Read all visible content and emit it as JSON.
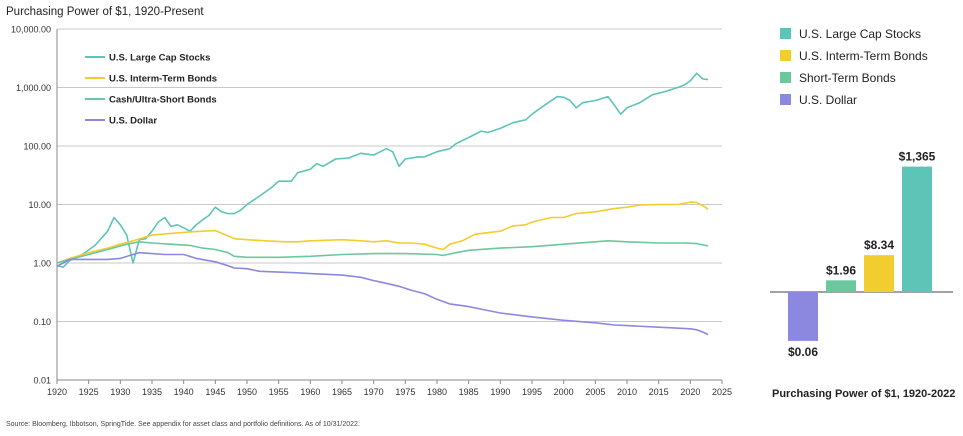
{
  "chart_data": [
    {
      "type": "line",
      "title": "Purchasing Power of $1, 1920-Present",
      "y_scale": "log",
      "ylim": [
        0.01,
        10000
      ],
      "xlim": [
        1920,
        2025
      ],
      "grid": true,
      "legend_position": "top-left",
      "x_ticks": [
        "1920",
        "1925",
        "1930",
        "1935",
        "1940",
        "1945",
        "1950",
        "1955",
        "1960",
        "1965",
        "1970",
        "1975",
        "1980",
        "1985",
        "1990",
        "1995",
        "2000",
        "2005",
        "2010",
        "2015",
        "2020",
        "2025"
      ],
      "y_ticks": [
        "10,000.00",
        "1,000.00",
        "100.00",
        "10.00",
        "1.00",
        "0.10",
        "0.01"
      ],
      "series": [
        {
          "name": "U.S. Large Cap Stocks",
          "color": "#5ec4b8",
          "points": [
            [
              1920,
              0.9
            ],
            [
              1921,
              0.85
            ],
            [
              1922,
              1.1
            ],
            [
              1924,
              1.4
            ],
            [
              1926,
              2.0
            ],
            [
              1928,
              3.5
            ],
            [
              1929,
              6.0
            ],
            [
              1930,
              4.5
            ],
            [
              1931,
              3.0
            ],
            [
              1932,
              1.0
            ],
            [
              1933,
              2.5
            ],
            [
              1934,
              2.6
            ],
            [
              1935,
              3.5
            ],
            [
              1936,
              5.0
            ],
            [
              1937,
              6.0
            ],
            [
              1938,
              4.2
            ],
            [
              1939,
              4.5
            ],
            [
              1940,
              4.0
            ],
            [
              1941,
              3.5
            ],
            [
              1942,
              4.5
            ],
            [
              1943,
              5.5
            ],
            [
              1944,
              6.5
            ],
            [
              1945,
              9.0
            ],
            [
              1946,
              7.5
            ],
            [
              1947,
              7.0
            ],
            [
              1948,
              7.0
            ],
            [
              1949,
              8.0
            ],
            [
              1950,
              10.0
            ],
            [
              1952,
              14.0
            ],
            [
              1954,
              20.0
            ],
            [
              1955,
              25.0
            ],
            [
              1957,
              25.0
            ],
            [
              1958,
              35.0
            ],
            [
              1960,
              40.0
            ],
            [
              1961,
              50.0
            ],
            [
              1962,
              45.0
            ],
            [
              1964,
              60.0
            ],
            [
              1966,
              62.0
            ],
            [
              1968,
              75.0
            ],
            [
              1970,
              70.0
            ],
            [
              1972,
              90.0
            ],
            [
              1973,
              80.0
            ],
            [
              1974,
              45.0
            ],
            [
              1975,
              60.0
            ],
            [
              1977,
              65.0
            ],
            [
              1978,
              65.0
            ],
            [
              1980,
              80.0
            ],
            [
              1982,
              90.0
            ],
            [
              1983,
              110.0
            ],
            [
              1985,
              140.0
            ],
            [
              1987,
              180.0
            ],
            [
              1988,
              170.0
            ],
            [
              1990,
              200.0
            ],
            [
              1992,
              250.0
            ],
            [
              1994,
              280.0
            ],
            [
              1995,
              350.0
            ],
            [
              1997,
              500.0
            ],
            [
              1999,
              700.0
            ],
            [
              2000,
              680.0
            ],
            [
              2001,
              600.0
            ],
            [
              2002,
              450.0
            ],
            [
              2003,
              550.0
            ],
            [
              2005,
              600.0
            ],
            [
              2007,
              700.0
            ],
            [
              2008,
              500.0
            ],
            [
              2009,
              350.0
            ],
            [
              2010,
              450.0
            ],
            [
              2012,
              550.0
            ],
            [
              2014,
              750.0
            ],
            [
              2016,
              850.0
            ],
            [
              2018,
              1000.0
            ],
            [
              2019,
              1100.0
            ],
            [
              2020,
              1300.0
            ],
            [
              2021,
              1750.0
            ],
            [
              2022,
              1400.0
            ],
            [
              2022.8,
              1365.0
            ]
          ]
        },
        {
          "name": "U.S. Interm-Term Bonds",
          "color": "#f2cd2e",
          "points": [
            [
              1920,
              1.0
            ],
            [
              1922,
              1.2
            ],
            [
              1925,
              1.5
            ],
            [
              1928,
              1.8
            ],
            [
              1930,
              2.1
            ],
            [
              1932,
              2.4
            ],
            [
              1935,
              3.0
            ],
            [
              1938,
              3.2
            ],
            [
              1941,
              3.4
            ],
            [
              1943,
              3.5
            ],
            [
              1945,
              3.6
            ],
            [
              1946,
              3.2
            ],
            [
              1947,
              2.9
            ],
            [
              1948,
              2.6
            ],
            [
              1950,
              2.5
            ],
            [
              1953,
              2.4
            ],
            [
              1956,
              2.3
            ],
            [
              1958,
              2.3
            ],
            [
              1960,
              2.4
            ],
            [
              1965,
              2.5
            ],
            [
              1968,
              2.4
            ],
            [
              1970,
              2.3
            ],
            [
              1972,
              2.4
            ],
            [
              1974,
              2.2
            ],
            [
              1976,
              2.2
            ],
            [
              1978,
              2.1
            ],
            [
              1980,
              1.8
            ],
            [
              1981,
              1.7
            ],
            [
              1982,
              2.1
            ],
            [
              1984,
              2.4
            ],
            [
              1986,
              3.1
            ],
            [
              1988,
              3.3
            ],
            [
              1990,
              3.5
            ],
            [
              1992,
              4.3
            ],
            [
              1994,
              4.5
            ],
            [
              1995,
              5.0
            ],
            [
              1998,
              6.0
            ],
            [
              2000,
              6.0
            ],
            [
              2002,
              7.0
            ],
            [
              2005,
              7.5
            ],
            [
              2008,
              8.5
            ],
            [
              2010,
              9.0
            ],
            [
              2012,
              9.8
            ],
            [
              2015,
              10.0
            ],
            [
              2018,
              10.0
            ],
            [
              2020,
              11.0
            ],
            [
              2021,
              10.8
            ],
            [
              2022,
              9.5
            ],
            [
              2022.8,
              8.34
            ]
          ]
        },
        {
          "name": "Cash/Ultra-Short Bonds",
          "color": "#6bc79e",
          "points": [
            [
              1920,
              1.0
            ],
            [
              1922,
              1.15
            ],
            [
              1925,
              1.4
            ],
            [
              1928,
              1.7
            ],
            [
              1931,
              2.1
            ],
            [
              1933,
              2.3
            ],
            [
              1935,
              2.2
            ],
            [
              1938,
              2.1
            ],
            [
              1941,
              2.0
            ],
            [
              1943,
              1.8
            ],
            [
              1945,
              1.7
            ],
            [
              1947,
              1.5
            ],
            [
              1948,
              1.3
            ],
            [
              1950,
              1.25
            ],
            [
              1955,
              1.25
            ],
            [
              1960,
              1.3
            ],
            [
              1965,
              1.4
            ],
            [
              1970,
              1.45
            ],
            [
              1975,
              1.45
            ],
            [
              1980,
              1.4
            ],
            [
              1981,
              1.35
            ],
            [
              1983,
              1.5
            ],
            [
              1985,
              1.65
            ],
            [
              1990,
              1.8
            ],
            [
              1995,
              1.9
            ],
            [
              2000,
              2.1
            ],
            [
              2005,
              2.3
            ],
            [
              2007,
              2.4
            ],
            [
              2010,
              2.3
            ],
            [
              2015,
              2.2
            ],
            [
              2019,
              2.2
            ],
            [
              2021,
              2.15
            ],
            [
              2022.8,
              1.96
            ]
          ]
        },
        {
          "name": "U.S. Dollar",
          "color": "#8c88e0",
          "points": [
            [
              1920,
              0.88
            ],
            [
              1921,
              1.0
            ],
            [
              1922,
              1.15
            ],
            [
              1925,
              1.15
            ],
            [
              1928,
              1.15
            ],
            [
              1930,
              1.2
            ],
            [
              1932,
              1.4
            ],
            [
              1933,
              1.5
            ],
            [
              1935,
              1.45
            ],
            [
              1937,
              1.4
            ],
            [
              1940,
              1.4
            ],
            [
              1942,
              1.2
            ],
            [
              1945,
              1.05
            ],
            [
              1947,
              0.9
            ],
            [
              1948,
              0.82
            ],
            [
              1950,
              0.8
            ],
            [
              1952,
              0.72
            ],
            [
              1955,
              0.7
            ],
            [
              1958,
              0.68
            ],
            [
              1960,
              0.66
            ],
            [
              1965,
              0.62
            ],
            [
              1968,
              0.57
            ],
            [
              1970,
              0.5
            ],
            [
              1972,
              0.45
            ],
            [
              1974,
              0.4
            ],
            [
              1976,
              0.34
            ],
            [
              1978,
              0.3
            ],
            [
              1980,
              0.24
            ],
            [
              1982,
              0.2
            ],
            [
              1985,
              0.18
            ],
            [
              1990,
              0.14
            ],
            [
              1995,
              0.12
            ],
            [
              2000,
              0.105
            ],
            [
              2005,
              0.095
            ],
            [
              2008,
              0.087
            ],
            [
              2010,
              0.085
            ],
            [
              2015,
              0.08
            ],
            [
              2020,
              0.075
            ],
            [
              2021,
              0.072
            ],
            [
              2022,
              0.066
            ],
            [
              2022.8,
              0.06
            ]
          ]
        }
      ]
    },
    {
      "type": "bar",
      "title": "Purchasing Power of $1, 1920-2022",
      "categories": [
        "U.S. Dollar",
        "Short-Term Bonds",
        "U.S. Interm-Term Bonds",
        "U.S. Large Cap Stocks"
      ],
      "values": [
        0.06,
        1.96,
        8.34,
        1365
      ],
      "labels": [
        "$0.06",
        "$1.96",
        "$8.34",
        "$1,365"
      ],
      "colors": [
        "#8c88e0",
        "#6bc79e",
        "#f2cd2e",
        "#5ec4b8"
      ],
      "legend": [
        {
          "name": "U.S. Large Cap Stocks",
          "color": "#5ec4b8"
        },
        {
          "name": "U.S. Interm-Term Bonds",
          "color": "#f2cd2e"
        },
        {
          "name": "Short-Term Bonds",
          "color": "#6bc79e"
        },
        {
          "name": "U.S. Dollar",
          "color": "#8c88e0"
        }
      ],
      "legend_position": "top"
    }
  ],
  "source_note": "Source: Bloomberg, Ibbotson, SpringTide. See appendix for asset class and portfolio definitions. As of 10/31/2022."
}
